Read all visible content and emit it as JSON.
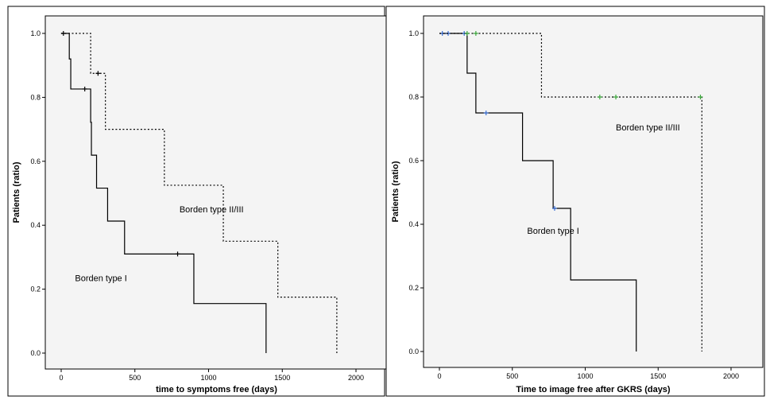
{
  "chart_data": [
    {
      "type": "line",
      "step": true,
      "xlabel": "time to symptoms free (days)",
      "ylabel": "Patients (ratio)",
      "xlim": [
        0,
        2000
      ],
      "ylim": [
        0,
        1.0
      ],
      "x_ticks": [
        "0",
        "500",
        "1000",
        "1500",
        "2000"
      ],
      "y_ticks": [
        "0.0",
        "0.2",
        "0.4",
        "0.6",
        "0.8",
        "1.0"
      ],
      "series": [
        {
          "name": "Borden type I",
          "style": "solid",
          "color": "#000000",
          "x": [
            0,
            40,
            55,
            60,
            65,
            190,
            200,
            205,
            240,
            315,
            430,
            900,
            1390
          ],
          "y": [
            1.0,
            1.0,
            0.92,
            0.92,
            0.826,
            0.826,
            0.722,
            0.619,
            0.516,
            0.413,
            0.31,
            0.155,
            0.0
          ],
          "censored": [
            [
              15,
              1.0
            ],
            [
              160,
              0.826
            ],
            [
              790,
              0.31
            ]
          ]
        },
        {
          "name": "Borden type II/III",
          "style": "dotted",
          "color": "#000000",
          "x": [
            0,
            200,
            300,
            700,
            1100,
            1470,
            1870
          ],
          "y": [
            1.0,
            0.875,
            0.7,
            0.525,
            0.35,
            0.175,
            0.0
          ],
          "censored": [
            [
              250,
              0.875
            ]
          ]
        }
      ],
      "annotations": [
        {
          "text": "Borden type II/III",
          "x": 1020,
          "y": 0.44
        },
        {
          "text": "Borden type I",
          "x": 270,
          "y": 0.225
        }
      ]
    },
    {
      "type": "line",
      "step": true,
      "xlabel": "Time to image free after GKRS (days)",
      "ylabel": "Patients (ratio)",
      "xlim": [
        0,
        2000
      ],
      "ylim": [
        0,
        1.0
      ],
      "x_ticks": [
        "0",
        "500",
        "1000",
        "1500",
        "2000"
      ],
      "y_ticks": [
        "0.0",
        "0.2",
        "0.4",
        "0.6",
        "0.8",
        "1.0"
      ],
      "series": [
        {
          "name": "Borden type I",
          "style": "solid",
          "color": "#000000",
          "x": [
            0,
            190,
            250,
            570,
            780,
            900,
            1350
          ],
          "y": [
            1.0,
            0.875,
            0.75,
            0.6,
            0.45,
            0.225,
            0.0
          ],
          "censored": [
            [
              20,
              1.0
            ],
            [
              60,
              1.0
            ],
            [
              170,
              1.0
            ],
            [
              320,
              0.75
            ],
            [
              790,
              0.45
            ]
          ],
          "censor_color": "#3b6fd4"
        },
        {
          "name": "Borden type II/III",
          "style": "dotted",
          "color": "#000000",
          "x": [
            0,
            700,
            1800
          ],
          "y": [
            1.0,
            0.8,
            0.0
          ],
          "censored": [
            [
              190,
              1.0
            ],
            [
              250,
              1.0
            ],
            [
              1100,
              0.8
            ],
            [
              1210,
              0.8
            ],
            [
              1790,
              0.8
            ]
          ],
          "censor_color": "#3aa83a"
        }
      ],
      "annotations": [
        {
          "text": "Borden type II/III",
          "x": 1430,
          "y": 0.695
        },
        {
          "text": "Borden type I",
          "x": 780,
          "y": 0.37
        }
      ]
    }
  ]
}
